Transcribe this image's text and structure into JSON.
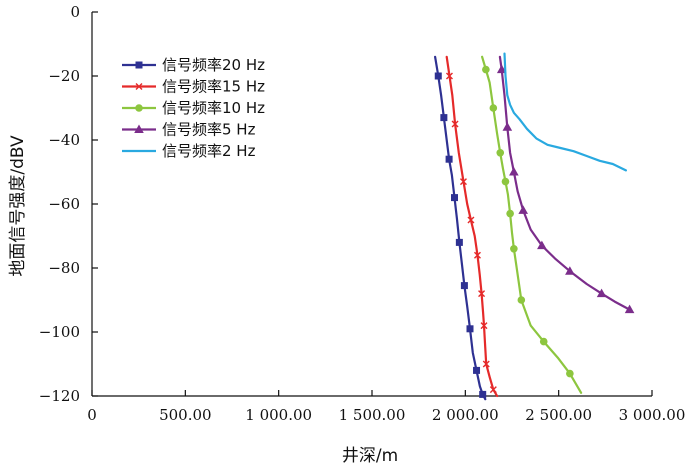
{
  "chart_data": {
    "type": "line",
    "title": "",
    "xlabel": "井深/m",
    "ylabel": "地面信号强度/dBV",
    "xlim": [
      0,
      3000
    ],
    "ylim": [
      -120,
      0
    ],
    "grid": false,
    "legend_position": "top-left",
    "x_ticks": [
      0,
      500,
      1000,
      1500,
      2000,
      2500,
      3000
    ],
    "x_tick_labels": [
      "0",
      "500.00",
      "1 000.00",
      "1 500.00",
      "2 000.00",
      "2 500.00",
      "3 000.00"
    ],
    "y_ticks": [
      0,
      -20,
      -40,
      -60,
      -80,
      -100,
      -120
    ],
    "y_tick_labels": [
      "0",
      "−20",
      "−40",
      "−60",
      "−80",
      "−100",
      "−120"
    ],
    "series": [
      {
        "name": "信号频率20 Hz",
        "color": "#2e3192",
        "marker": "square",
        "x": [
          1838,
          1855,
          1870,
          1885,
          1900,
          1913,
          1928,
          1942,
          1955,
          1968,
          1982,
          1995,
          2010,
          2025,
          2040,
          2060,
          2078,
          2093,
          2107
        ],
        "y": [
          -14,
          -20,
          -26,
          -33,
          -40,
          -46,
          -51,
          -58,
          -64.5,
          -72,
          -79,
          -85.5,
          -92,
          -99,
          -106.5,
          -112,
          -117,
          -119.5,
          -121
        ]
      },
      {
        "name": "信号频率15 Hz",
        "color": "#e52a2a",
        "marker": "x",
        "x": [
          1900,
          1915,
          1930,
          1945,
          1965,
          1990,
          2010,
          2030,
          2050,
          2065,
          2077,
          2087,
          2095,
          2100,
          2105,
          2112,
          2130,
          2150,
          2170
        ],
        "y": [
          -14,
          -20,
          -26,
          -35,
          -44,
          -53,
          -60,
          -65,
          -70,
          -76,
          -82,
          -88,
          -94,
          -98,
          -103,
          -110,
          -114,
          -118,
          -120
        ]
      },
      {
        "name": "信号频率10 Hz",
        "color": "#8dc63f",
        "marker": "circle",
        "x": [
          2090,
          2110,
          2130,
          2150,
          2170,
          2187,
          2202,
          2215,
          2228,
          2240,
          2250,
          2260,
          2275,
          2300,
          2350,
          2420,
          2495,
          2560,
          2620
        ],
        "y": [
          -14,
          -18,
          -22,
          -30,
          -38,
          -44,
          -49,
          -53,
          -57,
          -63,
          -69,
          -74,
          -80,
          -90,
          -98,
          -103,
          -108,
          -113,
          -119
        ]
      },
      {
        "name": "信号频率5 Hz",
        "color": "#7b2d8b",
        "marker": "triangle",
        "x": [
          2185,
          2195,
          2210,
          2225,
          2240,
          2260,
          2280,
          2310,
          2350,
          2410,
          2480,
          2560,
          2650,
          2730,
          2800,
          2880
        ],
        "y": [
          -14,
          -18,
          -26,
          -36,
          -44,
          -50,
          -56,
          -62,
          -68,
          -73,
          -77,
          -81,
          -85,
          -88,
          -90.5,
          -93
        ]
      },
      {
        "name": "信号频率2 Hz",
        "color": "#29a9e0",
        "marker": "none",
        "x": [
          2210,
          2215,
          2225,
          2240,
          2260,
          2290,
          2330,
          2380,
          2440,
          2510,
          2580,
          2650,
          2720,
          2790,
          2860
        ],
        "y": [
          -13,
          -20,
          -26,
          -29,
          -31.5,
          -33.5,
          -36.5,
          -39.5,
          -41.5,
          -42.5,
          -43.5,
          -45,
          -46.5,
          -47.5,
          -49.5
        ]
      }
    ]
  }
}
